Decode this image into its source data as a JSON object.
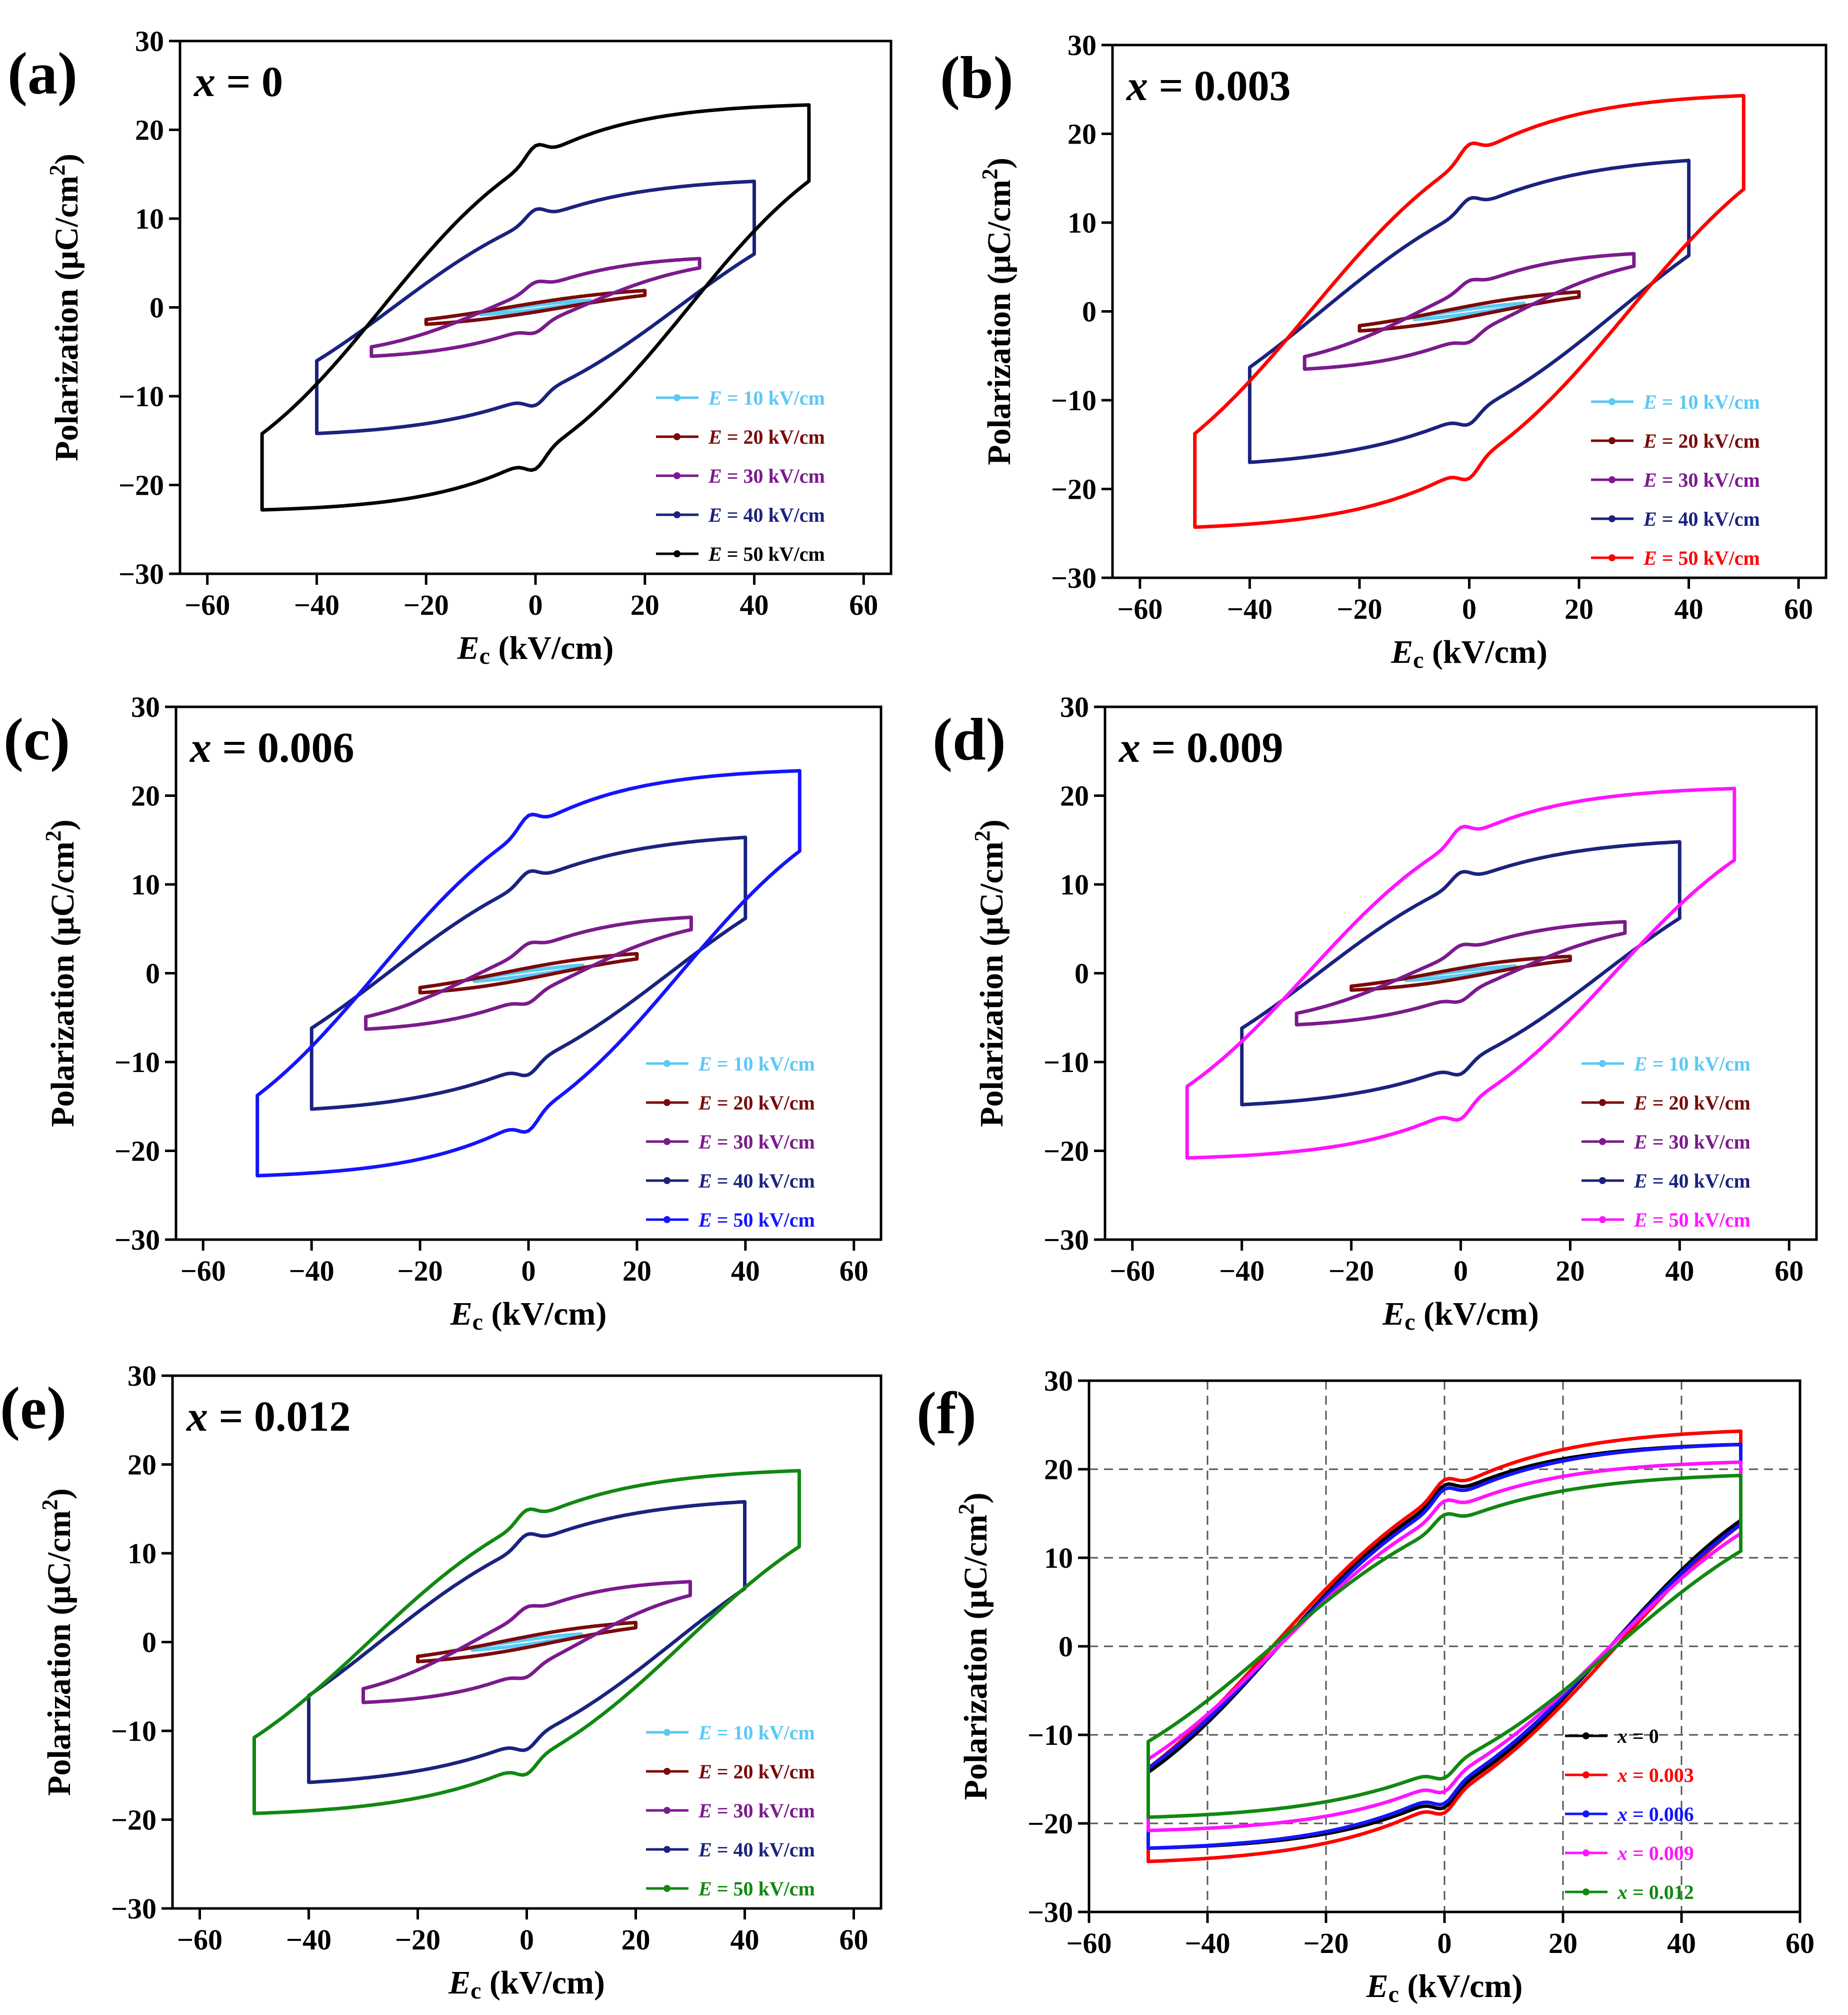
{
  "figure": {
    "panels": [
      {
        "letter": "(a)",
        "composition": "x = 0"
      },
      {
        "letter": "(b)",
        "composition": "x = 0.003"
      },
      {
        "letter": "(c)",
        "composition": "x = 0.006"
      },
      {
        "letter": "(d)",
        "composition": "x = 0.009"
      },
      {
        "letter": "(e)",
        "composition": "x = 0.012"
      },
      {
        "letter": "(f)",
        "composition": ""
      }
    ]
  },
  "chart_data": [
    {
      "type": "line",
      "panel": "(a)",
      "title": "x = 0",
      "xlabel": "Ec (kV/cm)",
      "ylabel": "Polarization (μC/cm²)",
      "xlim": [
        -65,
        65
      ],
      "ylim": [
        -30,
        30
      ],
      "xticks": [
        -60,
        -40,
        -20,
        0,
        20,
        40,
        60
      ],
      "yticks": [
        -30,
        -20,
        -10,
        0,
        10,
        20,
        30
      ],
      "grid": false,
      "legend_position": "bottom-right",
      "series": [
        {
          "name": "E = 10 kV/cm",
          "color": "#5bc8f5",
          "Emax": 10,
          "Pmax": 0.8,
          "Pr": 0.2,
          "Ec": 3,
          "hump": 0
        },
        {
          "name": "E = 20 kV/cm",
          "color": "#7a0a0a",
          "Emax": 20,
          "Pmax": 1.9,
          "Pr": 0.4,
          "Ec": 5,
          "hump": 0
        },
        {
          "name": "E = 30 kV/cm",
          "color": "#7b1a8c",
          "Emax": 30,
          "Pmax": 5.5,
          "Pr": 1.9,
          "Ec": 8,
          "hump": 0.8
        },
        {
          "name": "E = 40 kV/cm",
          "color": "#1a237e",
          "Emax": 40,
          "Pmax": 14.2,
          "Pr": 9.5,
          "Ec": 26,
          "hump": 1.2
        },
        {
          "name": "E = 50 kV/cm",
          "color": "#000000",
          "Emax": 50,
          "Pmax": 22.8,
          "Pr": 16.5,
          "Ec": 28,
          "hump": 1.5
        }
      ]
    },
    {
      "type": "line",
      "panel": "(b)",
      "title": "x = 0.003",
      "xlabel": "Ec (kV/cm)",
      "ylabel": "Polarization (μC/cm²)",
      "xlim": [
        -65,
        65
      ],
      "ylim": [
        -30,
        30
      ],
      "xticks": [
        -60,
        -40,
        -20,
        0,
        20,
        40,
        60
      ],
      "yticks": [
        -30,
        -20,
        -10,
        0,
        10,
        20,
        30
      ],
      "grid": false,
      "legend_position": "bottom-right",
      "series": [
        {
          "name": "E = 10 kV/cm",
          "color": "#5bc8f5",
          "Emax": 10,
          "Pmax": 0.9,
          "Pr": 0.2,
          "Ec": 3,
          "hump": 0
        },
        {
          "name": "E = 20 kV/cm",
          "color": "#7a0a0a",
          "Emax": 20,
          "Pmax": 2.2,
          "Pr": 0.5,
          "Ec": 5,
          "hump": 0
        },
        {
          "name": "E = 30 kV/cm",
          "color": "#7b1a8c",
          "Emax": 30,
          "Pmax": 6.5,
          "Pr": 2.5,
          "Ec": 9,
          "hump": 0.8
        },
        {
          "name": "E = 40 kV/cm",
          "color": "#1a237e",
          "Emax": 40,
          "Pmax": 17.0,
          "Pr": 11.0,
          "Ec": 27,
          "hump": 1.2
        },
        {
          "name": "E = 50 kV/cm",
          "color": "#ff0000",
          "Emax": 50,
          "Pmax": 24.3,
          "Pr": 17.0,
          "Ec": 29,
          "hump": 1.5
        }
      ]
    },
    {
      "type": "line",
      "panel": "(c)",
      "title": "x = 0.006",
      "xlabel": "Ec (kV/cm)",
      "ylabel": "Polarization (μC/cm²)",
      "xlim": [
        -65,
        65
      ],
      "ylim": [
        -30,
        30
      ],
      "xticks": [
        -60,
        -40,
        -20,
        0,
        20,
        40,
        60
      ],
      "yticks": [
        -30,
        -20,
        -10,
        0,
        10,
        20,
        30
      ],
      "grid": false,
      "legend_position": "bottom-right",
      "series": [
        {
          "name": "E = 10 kV/cm",
          "color": "#5bc8f5",
          "Emax": 10,
          "Pmax": 0.9,
          "Pr": 0.2,
          "Ec": 3,
          "hump": 0
        },
        {
          "name": "E = 20 kV/cm",
          "color": "#7a0a0a",
          "Emax": 20,
          "Pmax": 2.2,
          "Pr": 0.5,
          "Ec": 5,
          "hump": 0
        },
        {
          "name": "E = 30 kV/cm",
          "color": "#7b1a8c",
          "Emax": 30,
          "Pmax": 6.3,
          "Pr": 2.4,
          "Ec": 9,
          "hump": 0.8
        },
        {
          "name": "E = 40 kV/cm",
          "color": "#1a237e",
          "Emax": 40,
          "Pmax": 15.3,
          "Pr": 9.8,
          "Ec": 26,
          "hump": 1.2
        },
        {
          "name": "E = 50 kV/cm",
          "color": "#1414ff",
          "Emax": 50,
          "Pmax": 22.8,
          "Pr": 16.0,
          "Ec": 28,
          "hump": 1.5
        }
      ]
    },
    {
      "type": "line",
      "panel": "(d)",
      "title": "x = 0.009",
      "xlabel": "Ec (kV/cm)",
      "ylabel": "Polarization (μC/cm²)",
      "xlim": [
        -65,
        65
      ],
      "ylim": [
        -30,
        30
      ],
      "xticks": [
        -60,
        -40,
        -20,
        0,
        20,
        40,
        60
      ],
      "yticks": [
        -30,
        -20,
        -10,
        0,
        10,
        20,
        30
      ],
      "grid": false,
      "legend_position": "bottom-right",
      "series": [
        {
          "name": "E = 10 kV/cm",
          "color": "#5bc8f5",
          "Emax": 10,
          "Pmax": 0.8,
          "Pr": 0.2,
          "Ec": 3,
          "hump": 0
        },
        {
          "name": "E = 20 kV/cm",
          "color": "#7a0a0a",
          "Emax": 20,
          "Pmax": 1.9,
          "Pr": 0.5,
          "Ec": 5,
          "hump": 0
        },
        {
          "name": "E = 30 kV/cm",
          "color": "#7b1a8c",
          "Emax": 30,
          "Pmax": 5.8,
          "Pr": 2.2,
          "Ec": 9,
          "hump": 0.8
        },
        {
          "name": "E = 40 kV/cm",
          "color": "#1a237e",
          "Emax": 40,
          "Pmax": 14.8,
          "Pr": 9.8,
          "Ec": 26,
          "hump": 1.2
        },
        {
          "name": "E = 50 kV/cm",
          "color": "#ff14ff",
          "Emax": 50,
          "Pmax": 20.8,
          "Pr": 14.8,
          "Ec": 28,
          "hump": 1.4
        }
      ]
    },
    {
      "type": "line",
      "panel": "(e)",
      "title": "x = 0.012",
      "xlabel": "Ec (kV/cm)",
      "ylabel": "Polarization (μC/cm²)",
      "xlim": [
        -65,
        65
      ],
      "ylim": [
        -30,
        30
      ],
      "xticks": [
        -60,
        -40,
        -20,
        0,
        20,
        40,
        60
      ],
      "yticks": [
        -30,
        -20,
        -10,
        0,
        10,
        20,
        30
      ],
      "grid": false,
      "legend_position": "bottom-right",
      "series": [
        {
          "name": "E = 10 kV/cm",
          "color": "#5bc8f5",
          "Emax": 10,
          "Pmax": 0.9,
          "Pr": 0.2,
          "Ec": 3,
          "hump": 0
        },
        {
          "name": "E = 20 kV/cm",
          "color": "#7a0a0a",
          "Emax": 20,
          "Pmax": 2.2,
          "Pr": 0.5,
          "Ec": 5,
          "hump": 0
        },
        {
          "name": "E = 30 kV/cm",
          "color": "#7b1a8c",
          "Emax": 30,
          "Pmax": 6.8,
          "Pr": 3.0,
          "Ec": 10,
          "hump": 0.8
        },
        {
          "name": "E = 40 kV/cm",
          "color": "#1a237e",
          "Emax": 40,
          "Pmax": 15.8,
          "Pr": 10.5,
          "Ec": 27,
          "hump": 1.2
        },
        {
          "name": "E = 50 kV/cm",
          "color": "#118811",
          "Emax": 50,
          "Pmax": 19.3,
          "Pr": 13.3,
          "Ec": 29,
          "hump": 1.3
        }
      ]
    },
    {
      "type": "line",
      "panel": "(f)",
      "title": "",
      "xlabel": "Ec (kV/cm)",
      "ylabel": "Polarization (μC/cm²)",
      "xlim": [
        -60,
        60
      ],
      "ylim": [
        -30,
        30
      ],
      "xticks": [
        -60,
        -40,
        -20,
        0,
        20,
        40,
        60
      ],
      "yticks": [
        -30,
        -20,
        -10,
        0,
        10,
        20,
        30
      ],
      "grid": true,
      "legend_position": "bottom-right",
      "series": [
        {
          "name": "x = 0",
          "color": "#000000",
          "Emax": 50,
          "Pmax": 22.8,
          "Pr": 16.5,
          "Ec": 28,
          "hump": 1.5
        },
        {
          "name": "x = 0.003",
          "color": "#ff0000",
          "Emax": 50,
          "Pmax": 24.3,
          "Pr": 17.0,
          "Ec": 29,
          "hump": 1.5
        },
        {
          "name": "x = 0.006",
          "color": "#1414ff",
          "Emax": 50,
          "Pmax": 22.8,
          "Pr": 16.0,
          "Ec": 28,
          "hump": 1.5
        },
        {
          "name": "x = 0.009",
          "color": "#ff14ff",
          "Emax": 50,
          "Pmax": 20.8,
          "Pr": 14.8,
          "Ec": 28,
          "hump": 1.4
        },
        {
          "name": "x = 0.012",
          "color": "#118811",
          "Emax": 50,
          "Pmax": 19.3,
          "Pr": 13.3,
          "Ec": 29,
          "hump": 1.3
        }
      ]
    }
  ]
}
